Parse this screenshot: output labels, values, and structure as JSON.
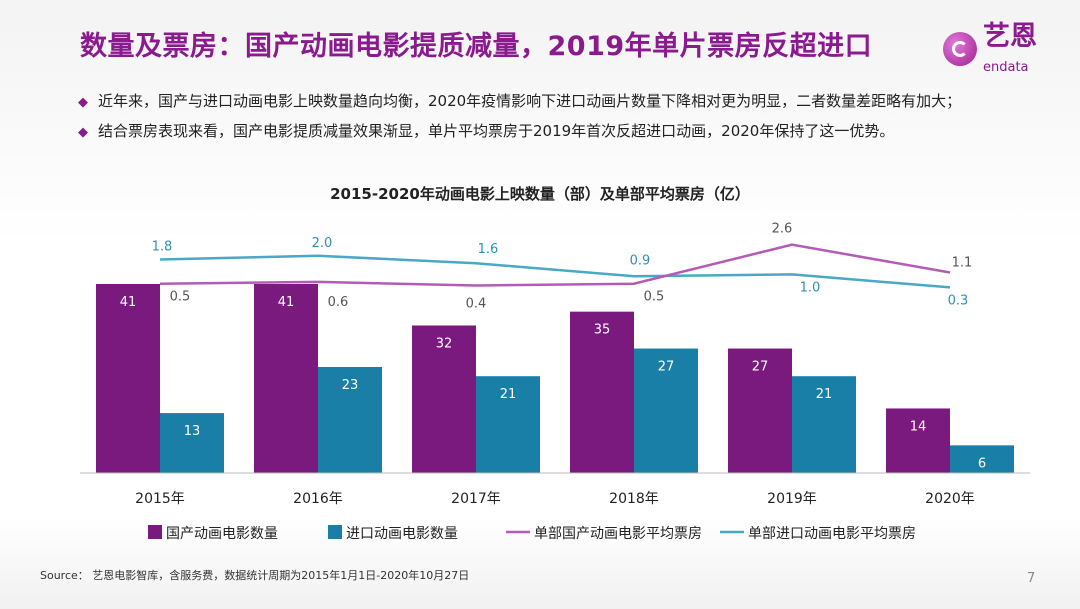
{
  "title": "数量及票房：国产动画电影提质减量，2019年单片票房反超进口",
  "logo": {
    "cn": "艺恩",
    "en": "endata"
  },
  "bullets": [
    "近年来，国产与进口动画电影上映数量趋向均衡，2020年疫情影响下进口动画片数量下降相对更为明显，二者数量差距略有加大；",
    "结合票房表现来看，国产电影提质减量效果渐显，单片平均票房于2019年首次反超进口动画，2020年保持了这一优势。"
  ],
  "bullet_icon": "diamond-icon",
  "chart_data": {
    "type": "bar+line",
    "title": "2015-2020年动画电影上映数量（部）及单部平均票房（亿）",
    "categories": [
      "2015年",
      "2016年",
      "2017年",
      "2018年",
      "2019年",
      "2020年"
    ],
    "series": [
      {
        "name": "国产动画电影数量",
        "type": "bar",
        "axis": "primary",
        "color": "#7b1a7e",
        "values": [
          41,
          41,
          32,
          35,
          27,
          14
        ]
      },
      {
        "name": "进口动画电影数量",
        "type": "bar",
        "axis": "primary",
        "color": "#1a7fa6",
        "values": [
          13,
          23,
          21,
          27,
          21,
          6
        ]
      },
      {
        "name": "单部国产动画电影平均票房",
        "type": "line",
        "axis": "secondary",
        "color": "#b35bb6",
        "values": [
          0.5,
          0.6,
          0.4,
          0.5,
          2.6,
          1.1
        ]
      },
      {
        "name": "单部进口动画电影平均票房",
        "type": "line",
        "axis": "secondary",
        "color": "#4aa8c4",
        "values": [
          1.8,
          2.0,
          1.6,
          0.9,
          1.0,
          0.3
        ]
      }
    ],
    "legend": "bottom",
    "grid": false
  },
  "source": "Source：  艺恩电影智库，含服务费，数据统计周期为2015年1月1日-2020年10月27日",
  "page_number": "7"
}
